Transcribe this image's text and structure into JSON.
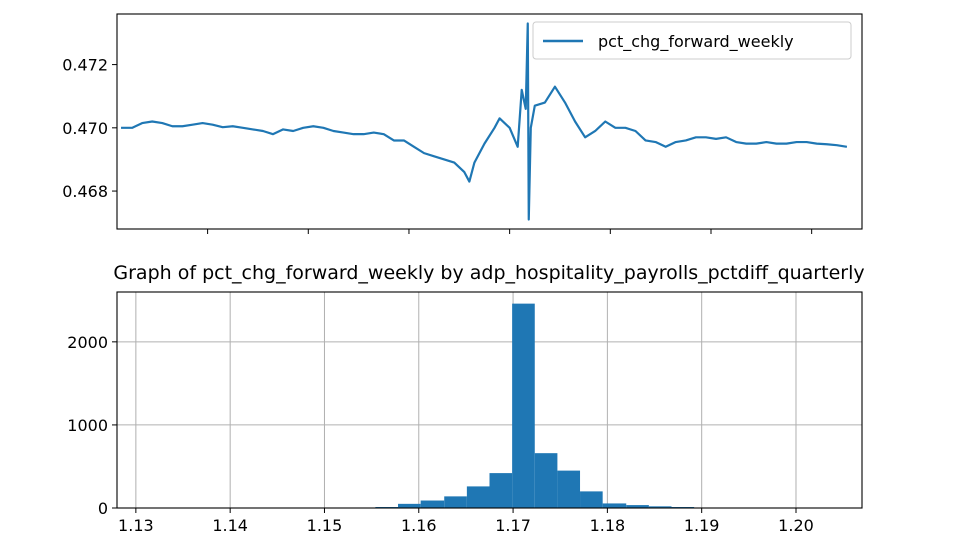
{
  "colors": {
    "series": "#1f77b4",
    "grid": "#b0b0b0",
    "axes": "#000000"
  },
  "chart_data": [
    {
      "type": "line",
      "title": "",
      "xlabel": "",
      "ylabel": "",
      "xlim": [
        1.131,
        1.205
      ],
      "ylim": [
        0.4668,
        0.4736
      ],
      "grid": false,
      "legend_position": "top-right",
      "y_ticks": [
        {
          "value": 0.468,
          "label": "0.468"
        },
        {
          "value": 0.47,
          "label": "0.470"
        },
        {
          "value": 0.472,
          "label": "0.472"
        }
      ],
      "x_tick_values": [
        1.14,
        1.15,
        1.16,
        1.17,
        1.18,
        1.19,
        1.2
      ],
      "series": [
        {
          "name": "pct_chg_forward_weekly",
          "points": [
            [
              1.1314,
              0.47
            ],
            [
              1.1325,
              0.47
            ],
            [
              1.1335,
              0.47015
            ],
            [
              1.1345,
              0.4702
            ],
            [
              1.1355,
              0.47015
            ],
            [
              1.1365,
              0.47005
            ],
            [
              1.1375,
              0.47005
            ],
            [
              1.1385,
              0.4701
            ],
            [
              1.1395,
              0.47015
            ],
            [
              1.1405,
              0.4701
            ],
            [
              1.1415,
              0.47002
            ],
            [
              1.1425,
              0.47005
            ],
            [
              1.1435,
              0.47
            ],
            [
              1.1445,
              0.46995
            ],
            [
              1.1455,
              0.4699
            ],
            [
              1.1465,
              0.4698
            ],
            [
              1.1475,
              0.46995
            ],
            [
              1.1485,
              0.4699
            ],
            [
              1.1495,
              0.47
            ],
            [
              1.1505,
              0.47005
            ],
            [
              1.1515,
              0.47
            ],
            [
              1.1525,
              0.4699
            ],
            [
              1.1535,
              0.46985
            ],
            [
              1.1545,
              0.4698
            ],
            [
              1.1555,
              0.4698
            ],
            [
              1.1565,
              0.46985
            ],
            [
              1.1575,
              0.4698
            ],
            [
              1.158,
              0.4697
            ],
            [
              1.1585,
              0.4696
            ],
            [
              1.1595,
              0.4696
            ],
            [
              1.1605,
              0.4694
            ],
            [
              1.1615,
              0.4692
            ],
            [
              1.1625,
              0.4691
            ],
            [
              1.1635,
              0.469
            ],
            [
              1.1645,
              0.4689
            ],
            [
              1.1655,
              0.4686
            ],
            [
              1.166,
              0.4683
            ],
            [
              1.1665,
              0.4689
            ],
            [
              1.1675,
              0.4695
            ],
            [
              1.1685,
              0.47
            ],
            [
              1.169,
              0.4703
            ],
            [
              1.17,
              0.47
            ],
            [
              1.1708,
              0.4694
            ],
            [
              1.1712,
              0.4712
            ],
            [
              1.1716,
              0.4706
            ],
            [
              1.1718,
              0.4733
            ],
            [
              1.1719,
              0.4671
            ],
            [
              1.1721,
              0.47
            ],
            [
              1.1725,
              0.4707
            ],
            [
              1.1735,
              0.4708
            ],
            [
              1.1745,
              0.4713
            ],
            [
              1.1755,
              0.4708
            ],
            [
              1.1765,
              0.4702
            ],
            [
              1.1775,
              0.4697
            ],
            [
              1.1785,
              0.4699
            ],
            [
              1.1795,
              0.4702
            ],
            [
              1.1805,
              0.47
            ],
            [
              1.1815,
              0.47
            ],
            [
              1.1825,
              0.4699
            ],
            [
              1.1835,
              0.4696
            ],
            [
              1.1845,
              0.46955
            ],
            [
              1.1855,
              0.4694
            ],
            [
              1.1865,
              0.46955
            ],
            [
              1.1875,
              0.4696
            ],
            [
              1.1885,
              0.4697
            ],
            [
              1.1895,
              0.4697
            ],
            [
              1.1905,
              0.46965
            ],
            [
              1.1915,
              0.4697
            ],
            [
              1.1925,
              0.46955
            ],
            [
              1.1935,
              0.4695
            ],
            [
              1.1945,
              0.4695
            ],
            [
              1.1955,
              0.46955
            ],
            [
              1.1965,
              0.4695
            ],
            [
              1.1975,
              0.4695
            ],
            [
              1.1985,
              0.46955
            ],
            [
              1.1995,
              0.46955
            ],
            [
              1.2005,
              0.4695
            ],
            [
              1.2015,
              0.46948
            ],
            [
              1.2025,
              0.46945
            ],
            [
              1.2035,
              0.4694
            ]
          ]
        }
      ]
    },
    {
      "type": "bar",
      "title": "Graph of pct_chg_forward_weekly by adp_hospitality_payrolls_pctdiff_quarterly",
      "xlabel": "",
      "ylabel": "",
      "xlim": [
        1.128,
        1.207
      ],
      "ylim": [
        0,
        2600
      ],
      "grid": true,
      "x_ticks": [
        {
          "value": 1.13,
          "label": "1.13"
        },
        {
          "value": 1.14,
          "label": "1.14"
        },
        {
          "value": 1.15,
          "label": "1.15"
        },
        {
          "value": 1.16,
          "label": "1.16"
        },
        {
          "value": 1.17,
          "label": "1.17"
        },
        {
          "value": 1.18,
          "label": "1.18"
        },
        {
          "value": 1.19,
          "label": "1.19"
        },
        {
          "value": 1.2,
          "label": "1.20"
        }
      ],
      "y_ticks": [
        {
          "value": 0,
          "label": "0"
        },
        {
          "value": 1000,
          "label": "1000"
        },
        {
          "value": 2000,
          "label": "2000"
        }
      ],
      "bins": [
        {
          "start": 1.1554,
          "end": 1.1578,
          "count": 12
        },
        {
          "start": 1.1578,
          "end": 1.1602,
          "count": 50
        },
        {
          "start": 1.1602,
          "end": 1.1627,
          "count": 90
        },
        {
          "start": 1.1627,
          "end": 1.1651,
          "count": 140
        },
        {
          "start": 1.1651,
          "end": 1.1675,
          "count": 260
        },
        {
          "start": 1.1675,
          "end": 1.1699,
          "count": 420
        },
        {
          "start": 1.1699,
          "end": 1.1723,
          "count": 2460
        },
        {
          "start": 1.1723,
          "end": 1.1747,
          "count": 660
        },
        {
          "start": 1.1747,
          "end": 1.1771,
          "count": 450
        },
        {
          "start": 1.1771,
          "end": 1.1795,
          "count": 200
        },
        {
          "start": 1.1795,
          "end": 1.182,
          "count": 55
        },
        {
          "start": 1.182,
          "end": 1.1844,
          "count": 35
        },
        {
          "start": 1.1844,
          "end": 1.1868,
          "count": 20
        },
        {
          "start": 1.1868,
          "end": 1.1892,
          "count": 12
        },
        {
          "start": 1.1892,
          "end": 1.1916,
          "count": 5
        }
      ]
    }
  ]
}
